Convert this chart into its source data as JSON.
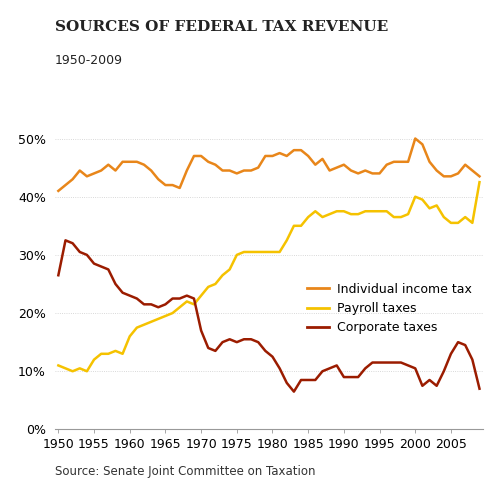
{
  "title": "SOURCES OF FEDERAL TAX REVENUE",
  "subtitle": "1950-2009",
  "source": "Source: Senate Joint Committee on Taxation",
  "individual_income_tax": {
    "label": "Individual income tax",
    "color": "#E8861A",
    "years": [
      1950,
      1951,
      1952,
      1953,
      1954,
      1955,
      1956,
      1957,
      1958,
      1959,
      1960,
      1961,
      1962,
      1963,
      1964,
      1965,
      1966,
      1967,
      1968,
      1969,
      1970,
      1971,
      1972,
      1973,
      1974,
      1975,
      1976,
      1977,
      1978,
      1979,
      1980,
      1981,
      1982,
      1983,
      1984,
      1985,
      1986,
      1987,
      1988,
      1989,
      1990,
      1991,
      1992,
      1993,
      1994,
      1995,
      1996,
      1997,
      1998,
      1999,
      2000,
      2001,
      2002,
      2003,
      2004,
      2005,
      2006,
      2007,
      2008,
      2009
    ],
    "values": [
      41.0,
      42.0,
      43.0,
      44.5,
      43.5,
      44.0,
      44.5,
      45.5,
      44.5,
      46.0,
      46.0,
      46.0,
      45.5,
      44.5,
      43.0,
      42.0,
      42.0,
      41.5,
      44.5,
      47.0,
      47.0,
      46.0,
      45.5,
      44.5,
      44.5,
      44.0,
      44.5,
      44.5,
      45.0,
      47.0,
      47.0,
      47.5,
      47.0,
      48.0,
      48.0,
      47.0,
      45.5,
      46.5,
      44.5,
      45.0,
      45.5,
      44.5,
      44.0,
      44.5,
      44.0,
      44.0,
      45.5,
      46.0,
      46.0,
      46.0,
      50.0,
      49.0,
      46.0,
      44.5,
      43.5,
      43.5,
      44.0,
      45.5,
      44.5,
      43.5
    ]
  },
  "payroll_taxes": {
    "label": "Payroll taxes",
    "color": "#F5C200",
    "years": [
      1950,
      1951,
      1952,
      1953,
      1954,
      1955,
      1956,
      1957,
      1958,
      1959,
      1960,
      1961,
      1962,
      1963,
      1964,
      1965,
      1966,
      1967,
      1968,
      1969,
      1970,
      1971,
      1972,
      1973,
      1974,
      1975,
      1976,
      1977,
      1978,
      1979,
      1980,
      1981,
      1982,
      1983,
      1984,
      1985,
      1986,
      1987,
      1988,
      1989,
      1990,
      1991,
      1992,
      1993,
      1994,
      1995,
      1996,
      1997,
      1998,
      1999,
      2000,
      2001,
      2002,
      2003,
      2004,
      2005,
      2006,
      2007,
      2008,
      2009
    ],
    "values": [
      11.0,
      10.5,
      10.0,
      10.5,
      10.0,
      12.0,
      13.0,
      13.0,
      13.5,
      13.0,
      16.0,
      17.5,
      18.0,
      18.5,
      19.0,
      19.5,
      20.0,
      21.0,
      22.0,
      21.5,
      23.0,
      24.5,
      25.0,
      26.5,
      27.5,
      30.0,
      30.5,
      30.5,
      30.5,
      30.5,
      30.5,
      30.5,
      32.5,
      35.0,
      35.0,
      36.5,
      37.5,
      36.5,
      37.0,
      37.5,
      37.5,
      37.0,
      37.0,
      37.5,
      37.5,
      37.5,
      37.5,
      36.5,
      36.5,
      37.0,
      40.0,
      39.5,
      38.0,
      38.5,
      36.5,
      35.5,
      35.5,
      36.5,
      35.5,
      42.5
    ]
  },
  "corporate_taxes": {
    "label": "Corporate taxes",
    "color": "#9B1C00",
    "years": [
      1950,
      1951,
      1952,
      1953,
      1954,
      1955,
      1956,
      1957,
      1958,
      1959,
      1960,
      1961,
      1962,
      1963,
      1964,
      1965,
      1966,
      1967,
      1968,
      1969,
      1970,
      1971,
      1972,
      1973,
      1974,
      1975,
      1976,
      1977,
      1978,
      1979,
      1980,
      1981,
      1982,
      1983,
      1984,
      1985,
      1986,
      1987,
      1988,
      1989,
      1990,
      1991,
      1992,
      1993,
      1994,
      1995,
      1996,
      1997,
      1998,
      1999,
      2000,
      2001,
      2002,
      2003,
      2004,
      2005,
      2006,
      2007,
      2008,
      2009
    ],
    "values": [
      26.5,
      32.5,
      32.0,
      30.5,
      30.0,
      28.5,
      28.0,
      27.5,
      25.0,
      23.5,
      23.0,
      22.5,
      21.5,
      21.5,
      21.0,
      21.5,
      22.5,
      22.5,
      23.0,
      22.5,
      17.0,
      14.0,
      13.5,
      15.0,
      15.5,
      15.0,
      15.5,
      15.5,
      15.0,
      13.5,
      12.5,
      10.5,
      8.0,
      6.5,
      8.5,
      8.5,
      8.5,
      10.0,
      10.5,
      11.0,
      9.0,
      9.0,
      9.0,
      10.5,
      11.5,
      11.5,
      11.5,
      11.5,
      11.5,
      11.0,
      10.5,
      7.5,
      8.5,
      7.5,
      10.0,
      13.0,
      15.0,
      14.5,
      12.0,
      7.0
    ]
  },
  "ylim": [
    0,
    52
  ],
  "yticks": [
    0,
    10,
    20,
    30,
    40,
    50
  ],
  "xlim": [
    1949.5,
    2009.5
  ],
  "xticks": [
    1950,
    1955,
    1960,
    1965,
    1970,
    1975,
    1980,
    1985,
    1990,
    1995,
    2000,
    2005
  ],
  "bg_color": "#ffffff",
  "title_fontsize": 11,
  "subtitle_fontsize": 9,
  "tick_fontsize": 9,
  "source_fontsize": 8.5,
  "legend_fontsize": 9
}
